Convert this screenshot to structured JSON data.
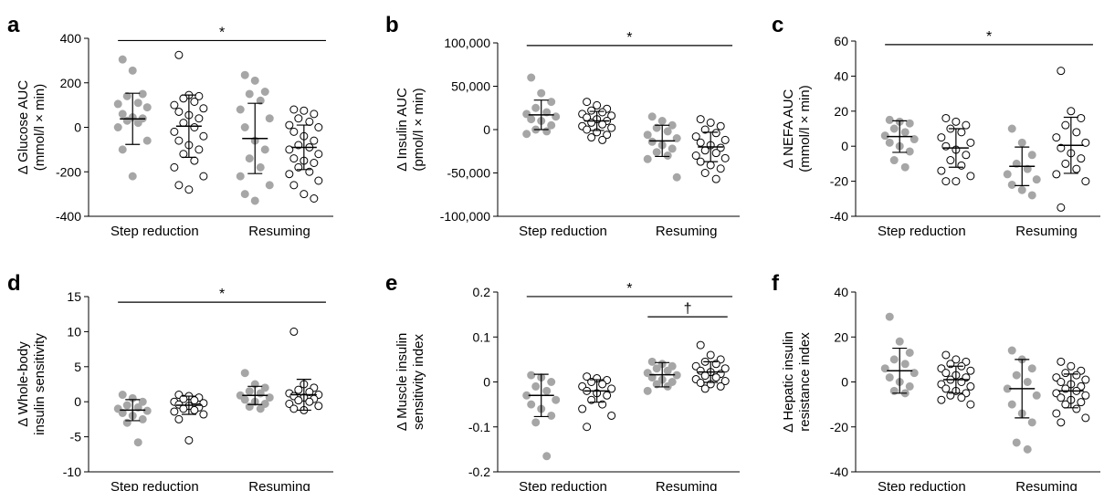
{
  "figure": {
    "groups": [
      "Step reduction",
      "Resuming"
    ],
    "colors": {
      "filled": "#a6a6a6",
      "open_fill": "#ffffff",
      "stroke": "#000000"
    }
  },
  "chart_data": [
    {
      "panel": "a",
      "type": "scatter",
      "ylabel_line1": "Δ Glucose AUC",
      "ylabel_line2": "(mmol/l × min)",
      "ylim": [
        -400,
        400
      ],
      "ticks": [
        400,
        200,
        0,
        -200,
        -400
      ],
      "tick_labels": [
        "400",
        "200",
        "0",
        "-200",
        "-400"
      ],
      "series": [
        {
          "group": "Step reduction",
          "style": "filled",
          "mean": 38,
          "sd": 115,
          "values": [
            305,
            255,
            150,
            140,
            110,
            105,
            90,
            60,
            45,
            40,
            30,
            20,
            0,
            -60,
            -100,
            -220
          ]
        },
        {
          "group": "Step reduction",
          "style": "open",
          "mean": 5,
          "sd": 140,
          "values": [
            325,
            145,
            140,
            130,
            115,
            100,
            85,
            70,
            55,
            40,
            20,
            0,
            -20,
            -40,
            -60,
            -80,
            -100,
            -120,
            -150,
            -180,
            -220,
            -260,
            -280
          ]
        },
        {
          "group": "Resuming",
          "style": "filled",
          "mean": -50,
          "sd": 158,
          "values": [
            235,
            210,
            160,
            150,
            120,
            80,
            40,
            0,
            -60,
            -100,
            -140,
            -180,
            -220,
            -260,
            -300,
            -330
          ]
        },
        {
          "group": "Resuming",
          "style": "open",
          "mean": -90,
          "sd": 100,
          "values": [
            80,
            75,
            60,
            40,
            25,
            10,
            0,
            -20,
            -40,
            -60,
            -80,
            -90,
            -100,
            -120,
            -140,
            -150,
            -160,
            -180,
            -200,
            -210,
            -240,
            -260,
            -300,
            -320
          ]
        }
      ],
      "annotations": [
        {
          "label": "*",
          "from": 0,
          "to": 1,
          "y": 390
        }
      ]
    },
    {
      "panel": "b",
      "type": "scatter",
      "ylabel_line1": "Δ Insulin AUC",
      "ylabel_line2": "(pmol/l × min)",
      "ylim": [
        -100000,
        100000
      ],
      "ticks": [
        100000,
        50000,
        0,
        -50000,
        -100000
      ],
      "tick_labels": [
        "100,000",
        "50,000",
        "0",
        "-50,000",
        "-100,000"
      ],
      "series": [
        {
          "group": "Step reduction",
          "style": "filled",
          "mean": 17000,
          "sd": 17000,
          "values": [
            60000,
            42000,
            32000,
            25000,
            20000,
            18000,
            15000,
            12000,
            10000,
            5000,
            0,
            -2000,
            -5000
          ]
        },
        {
          "group": "Step reduction",
          "style": "open",
          "mean": 10000,
          "sd": 11000,
          "values": [
            32000,
            28000,
            24000,
            22000,
            20000,
            18000,
            16000,
            14000,
            12000,
            10000,
            8000,
            6000,
            4000,
            2000,
            0,
            -3000,
            -6000,
            -9000,
            -12000
          ]
        },
        {
          "group": "Resuming",
          "style": "filled",
          "mean": -13000,
          "sd": 18000,
          "values": [
            15000,
            10000,
            5000,
            2000,
            -2000,
            -6000,
            -10000,
            -14000,
            -18000,
            -22000,
            -26000,
            -30000,
            -34000,
            -55000
          ]
        },
        {
          "group": "Resuming",
          "style": "open",
          "mean": -20000,
          "sd": 17000,
          "values": [
            12000,
            8000,
            4000,
            0,
            -4000,
            -8000,
            -12000,
            -15000,
            -18000,
            -21000,
            -24000,
            -27000,
            -30000,
            -33000,
            -37000,
            -41000,
            -45000,
            -50000,
            -57000
          ]
        }
      ],
      "annotations": [
        {
          "label": "*",
          "from": 0,
          "to": 1,
          "y": 97000
        }
      ]
    },
    {
      "panel": "c",
      "type": "scatter",
      "ylabel_line1": "Δ NEFA AUC",
      "ylabel_line2": "(mmol/l × min)",
      "ylim": [
        -40,
        60
      ],
      "ticks": [
        60,
        40,
        20,
        0,
        -20,
        -40
      ],
      "tick_labels": [
        "60",
        "40",
        "20",
        "0",
        "-20",
        "-40"
      ],
      "series": [
        {
          "group": "Step reduction",
          "style": "filled",
          "mean": 5.5,
          "sd": 9,
          "values": [
            15,
            14,
            13,
            10,
            8,
            6,
            4,
            2,
            0,
            -3,
            -8,
            -12
          ]
        },
        {
          "group": "Step reduction",
          "style": "open",
          "mean": -1,
          "sd": 11,
          "values": [
            16,
            14,
            12,
            10,
            8,
            5,
            2,
            0,
            -2,
            -5,
            -8,
            -11,
            -14,
            -17,
            -20,
            -20
          ]
        },
        {
          "group": "Resuming",
          "style": "filled",
          "mean": -11.5,
          "sd": 11,
          "values": [
            10,
            2,
            -5,
            -10,
            -13,
            -16,
            -19,
            -22,
            -25,
            -28
          ]
        },
        {
          "group": "Resuming",
          "style": "open",
          "mean": 0.5,
          "sd": 16,
          "values": [
            43,
            20,
            16,
            12,
            8,
            5,
            2,
            -1,
            -4,
            -7,
            -10,
            -13,
            -16,
            -20,
            -35
          ]
        }
      ],
      "annotations": [
        {
          "label": "*",
          "from": 0,
          "to": 1,
          "y": 58
        }
      ]
    },
    {
      "panel": "d",
      "type": "scatter",
      "ylabel_line1": "Δ Whole-body",
      "ylabel_line2": "insulin sensitivity",
      "ylim": [
        -10,
        15
      ],
      "ticks": [
        15,
        10,
        5,
        0,
        -5,
        -10
      ],
      "tick_labels": [
        "15",
        "10",
        "5",
        "0",
        "-5",
        "-10"
      ],
      "series": [
        {
          "group": "Step reduction",
          "style": "filled",
          "mean": -1.2,
          "sd": 1.5,
          "values": [
            1.0,
            0.5,
            0.0,
            -0.5,
            -0.8,
            -1.0,
            -1.3,
            -1.6,
            -2.0,
            -2.5,
            -3.0,
            -5.8
          ]
        },
        {
          "group": "Step reduction",
          "style": "open",
          "mean": -0.5,
          "sd": 1.3,
          "values": [
            1.0,
            0.8,
            0.6,
            0.4,
            0.2,
            0.0,
            -0.2,
            -0.4,
            -0.6,
            -0.8,
            -1.0,
            -1.2,
            -1.4,
            -1.8,
            -2.5,
            -5.5
          ]
        },
        {
          "group": "Resuming",
          "style": "filled",
          "mean": 0.9,
          "sd": 1.3,
          "values": [
            4.1,
            2.5,
            2.0,
            1.5,
            1.2,
            0.9,
            0.6,
            0.3,
            0.0,
            -0.3,
            -0.7,
            -1.0
          ]
        },
        {
          "group": "Resuming",
          "style": "open",
          "mean": 1.0,
          "sd": 2.2,
          "values": [
            10.0,
            2.5,
            2.0,
            1.7,
            1.4,
            1.2,
            1.0,
            0.8,
            0.6,
            0.4,
            0.2,
            0.0,
            -0.3,
            -0.6,
            -1.0,
            -1.2
          ]
        }
      ],
      "annotations": [
        {
          "label": "*",
          "from": 0,
          "to": 1,
          "y": 14.2
        }
      ]
    },
    {
      "panel": "e",
      "type": "scatter",
      "ylabel_line1": "Δ Muscle insulin",
      "ylabel_line2": "sensitivity index",
      "ylim": [
        -0.2,
        0.2
      ],
      "ticks": [
        0.2,
        0.1,
        0,
        -0.1,
        -0.2
      ],
      "tick_labels": [
        "0.2",
        "0.1",
        "0",
        "-0.1",
        "-0.2"
      ],
      "series": [
        {
          "group": "Step reduction",
          "style": "filled",
          "mean": -0.03,
          "sd": 0.047,
          "values": [
            0.015,
            0.01,
            0.0,
            -0.01,
            -0.02,
            -0.03,
            -0.04,
            -0.05,
            -0.06,
            -0.075,
            -0.09,
            -0.165
          ]
        },
        {
          "group": "Step reduction",
          "style": "open",
          "mean": -0.02,
          "sd": 0.025,
          "values": [
            0.012,
            0.008,
            0.004,
            0.0,
            -0.005,
            -0.01,
            -0.015,
            -0.02,
            -0.025,
            -0.03,
            -0.04,
            -0.05,
            -0.06,
            -0.075,
            -0.1
          ]
        },
        {
          "group": "Resuming",
          "style": "filled",
          "mean": 0.016,
          "sd": 0.027,
          "values": [
            0.045,
            0.04,
            0.035,
            0.03,
            0.025,
            0.02,
            0.015,
            0.01,
            0.005,
            0.0,
            -0.005,
            -0.01,
            -0.02
          ]
        },
        {
          "group": "Resuming",
          "style": "open",
          "mean": 0.022,
          "sd": 0.023,
          "values": [
            0.082,
            0.06,
            0.05,
            0.045,
            0.04,
            0.035,
            0.03,
            0.025,
            0.022,
            0.018,
            0.014,
            0.01,
            0.006,
            0.002,
            -0.002,
            -0.005,
            -0.01,
            -0.015
          ]
        }
      ],
      "annotations": [
        {
          "label": "*",
          "from": 0,
          "to": 1,
          "y": 0.19
        },
        {
          "label": "†",
          "from": 1,
          "to": 1,
          "y": 0.145
        }
      ]
    },
    {
      "panel": "f",
      "type": "scatter",
      "ylabel_line1": "Δ Hepatic insulin",
      "ylabel_line2": "resistance index",
      "ylim": [
        -40,
        40
      ],
      "ticks": [
        40,
        20,
        0,
        -20,
        -40
      ],
      "tick_labels": [
        "40",
        "20",
        "0",
        "-20",
        "-40"
      ],
      "series": [
        {
          "group": "Step reduction",
          "style": "filled",
          "mean": 5,
          "sd": 10,
          "values": [
            29,
            18,
            13,
            10,
            8,
            6,
            4,
            2,
            0,
            -2,
            -4,
            -5
          ]
        },
        {
          "group": "Step reduction",
          "style": "open",
          "mean": 1,
          "sd": 6,
          "values": [
            12,
            10,
            9,
            8,
            7,
            6,
            5,
            4,
            3,
            2,
            1,
            0,
            -1,
            -2,
            -3,
            -4,
            -5,
            -6,
            -7,
            -8,
            -10
          ]
        },
        {
          "group": "Resuming",
          "style": "filled",
          "mean": -3,
          "sd": 13,
          "values": [
            14,
            10,
            6,
            3,
            0,
            -3,
            -6,
            -10,
            -14,
            -18,
            -27,
            -30
          ]
        },
        {
          "group": "Resuming",
          "style": "open",
          "mean": -4,
          "sd": 7.5,
          "values": [
            9,
            7,
            5,
            4,
            3,
            2,
            1,
            0,
            -1,
            -2,
            -3,
            -4,
            -5,
            -6,
            -7,
            -8,
            -9,
            -10,
            -12,
            -14,
            -16,
            -18
          ]
        }
      ],
      "annotations": []
    }
  ]
}
